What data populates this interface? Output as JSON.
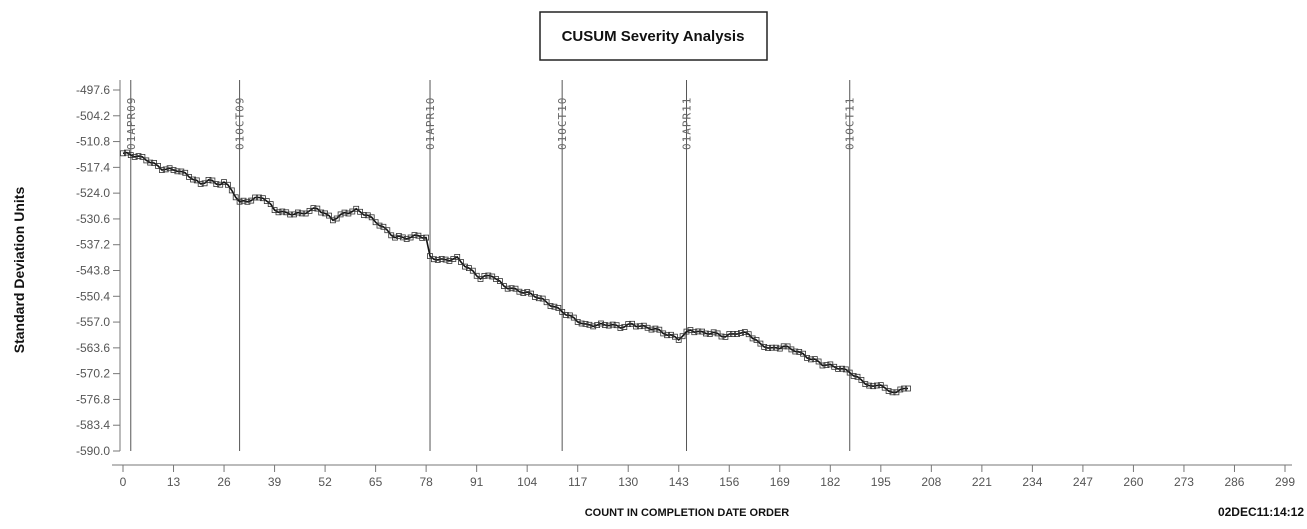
{
  "chart_data": {
    "type": "line",
    "title": "CUSUM Severity Analysis",
    "xlabel": "COUNT IN COMPLETION DATE ORDER",
    "ylabel": "Standard Deviation Units",
    "timestamp": "02DEC11:14:12",
    "xlim": [
      0,
      299
    ],
    "ylim": [
      -590.0,
      -497.6
    ],
    "x_ticks": [
      0,
      13,
      26,
      39,
      52,
      65,
      78,
      91,
      104,
      117,
      130,
      143,
      156,
      169,
      182,
      195,
      208,
      221,
      234,
      247,
      260,
      273,
      286,
      299
    ],
    "y_ticks": [
      -497.6,
      -504.2,
      -510.8,
      -517.4,
      -524.0,
      -530.6,
      -537.2,
      -543.8,
      -550.4,
      -557.0,
      -563.6,
      -570.2,
      -576.8,
      -583.4,
      -590.0
    ],
    "y_tick_labels": [
      "-497.6",
      "-504.2",
      "-510.8",
      "-517.4",
      "-524.0",
      "-530.6",
      "-537.2",
      "-543.8",
      "-550.4",
      "-557.0",
      "-563.6",
      "-570.2",
      "-576.8",
      "-583.4",
      "-590.0"
    ],
    "reference_lines": [
      {
        "x": 2,
        "label": "01APR09"
      },
      {
        "x": 30,
        "label": "01OCT09"
      },
      {
        "x": 79,
        "label": "01APR10"
      },
      {
        "x": 113,
        "label": "01OCT10"
      },
      {
        "x": 145,
        "label": "01APR11"
      },
      {
        "x": 187,
        "label": "01OCT11"
      }
    ],
    "grid": false,
    "legend": "none",
    "marker": "open-square",
    "series": [
      {
        "keypoints": [
          [
            0,
            -513.8
          ],
          [
            6,
            -515.5
          ],
          [
            10,
            -517.5
          ],
          [
            14,
            -518.0
          ],
          [
            18,
            -520.5
          ],
          [
            20,
            -522.0
          ],
          [
            22,
            -520.5
          ],
          [
            24,
            -521.5
          ],
          [
            26,
            -521.0
          ],
          [
            28,
            -523.0
          ],
          [
            30,
            -526.5
          ],
          [
            33,
            -526.0
          ],
          [
            36,
            -525.0
          ],
          [
            39,
            -528.0
          ],
          [
            42,
            -529.0
          ],
          [
            46,
            -529.5
          ],
          [
            50,
            -528.0
          ],
          [
            54,
            -530.5
          ],
          [
            57,
            -529.0
          ],
          [
            60,
            -528.5
          ],
          [
            63,
            -530.0
          ],
          [
            66,
            -532.0
          ],
          [
            70,
            -535.0
          ],
          [
            74,
            -535.5
          ],
          [
            76,
            -535.0
          ],
          [
            78,
            -535.8
          ],
          [
            79,
            -540.5
          ],
          [
            82,
            -541.0
          ],
          [
            86,
            -540.5
          ],
          [
            89,
            -543.5
          ],
          [
            92,
            -546.0
          ],
          [
            95,
            -545.0
          ],
          [
            98,
            -547.5
          ],
          [
            102,
            -549.0
          ],
          [
            106,
            -550.5
          ],
          [
            110,
            -552.5
          ],
          [
            113,
            -554.0
          ],
          [
            116,
            -556.0
          ],
          [
            119,
            -558.0
          ],
          [
            122,
            -558.0
          ],
          [
            125,
            -557.5
          ],
          [
            128,
            -558.0
          ],
          [
            131,
            -557.5
          ],
          [
            134,
            -558.5
          ],
          [
            137,
            -559.0
          ],
          [
            140,
            -560.0
          ],
          [
            143,
            -561.0
          ],
          [
            146,
            -559.0
          ],
          [
            149,
            -560.0
          ],
          [
            152,
            -560.0
          ],
          [
            155,
            -560.5
          ],
          [
            158,
            -559.5
          ],
          [
            161,
            -560.0
          ],
          [
            164,
            -563.0
          ],
          [
            167,
            -564.0
          ],
          [
            170,
            -563.0
          ],
          [
            173,
            -564.0
          ],
          [
            176,
            -566.0
          ],
          [
            180,
            -568.0
          ],
          [
            184,
            -568.5
          ],
          [
            187,
            -569.5
          ],
          [
            190,
            -572.0
          ],
          [
            193,
            -574.0
          ],
          [
            195,
            -573.0
          ],
          [
            197,
            -575.0
          ],
          [
            199,
            -574.5
          ],
          [
            201,
            -574.0
          ],
          [
            202,
            -573.5
          ]
        ]
      }
    ]
  }
}
